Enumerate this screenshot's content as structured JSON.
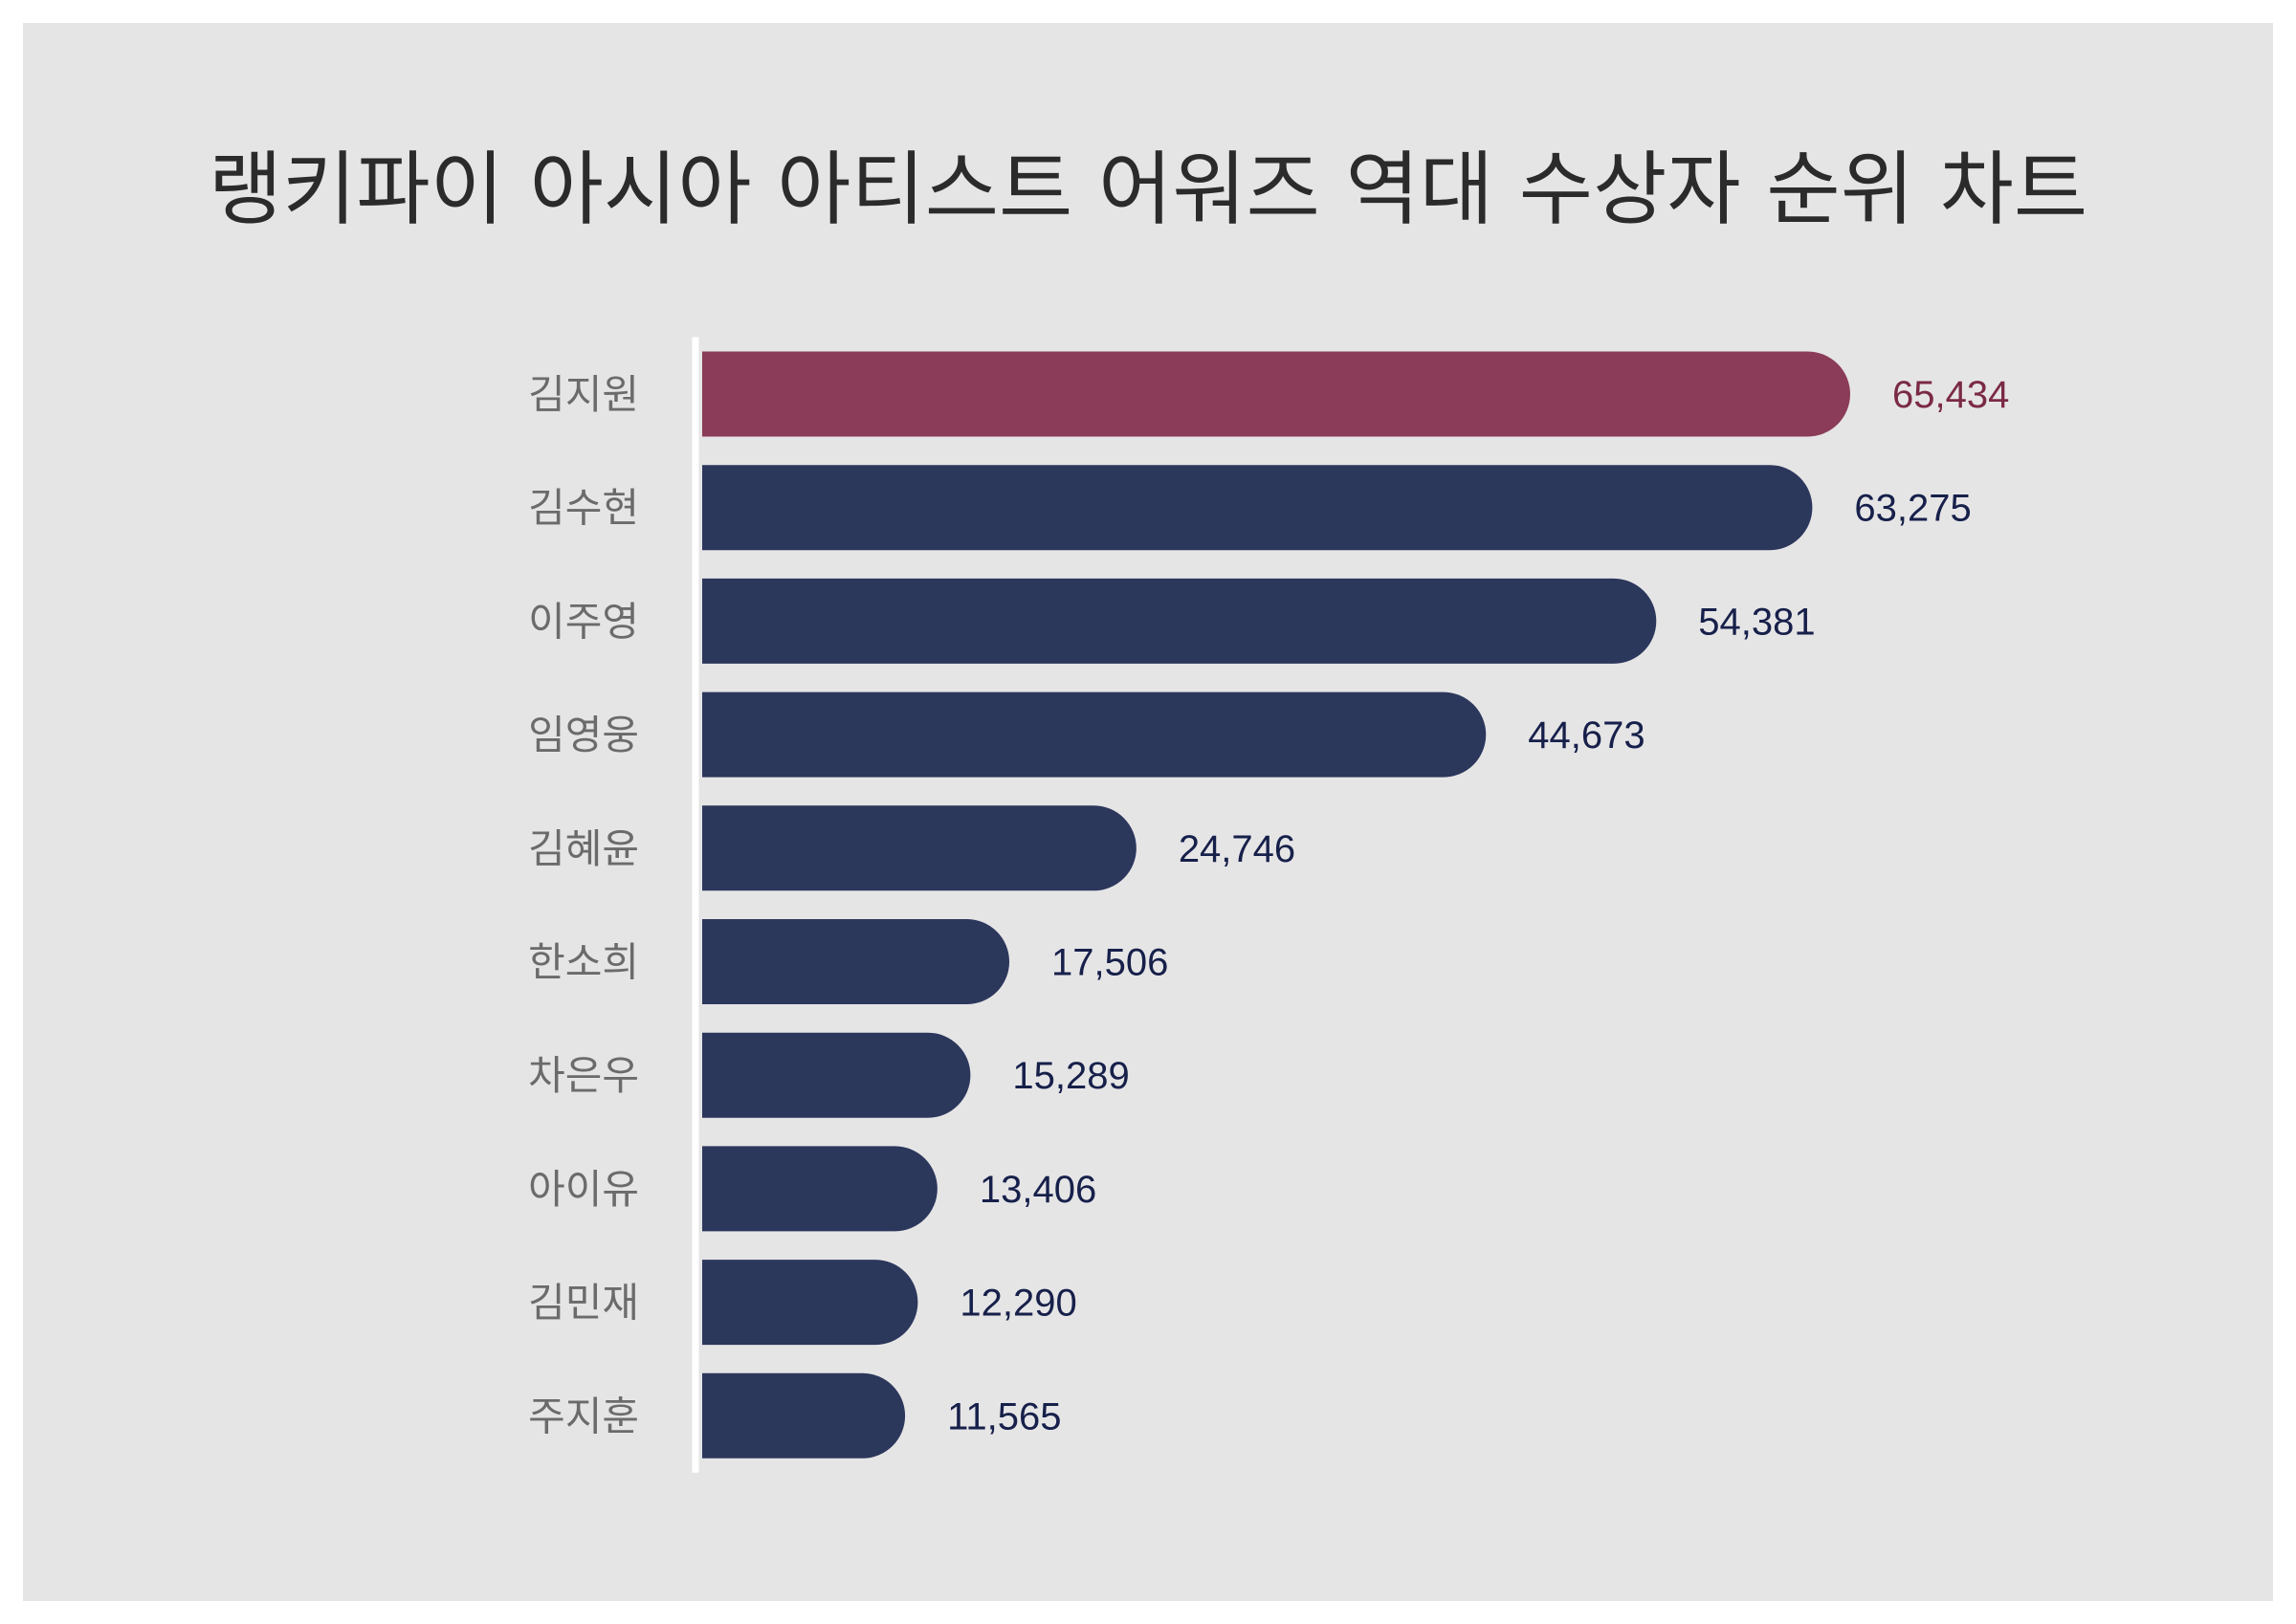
{
  "chart_data": {
    "type": "bar",
    "orientation": "horizontal",
    "title": "랭키파이 아시아 아티스트 어워즈 역대 수상자 순위 차트",
    "xlabel": "",
    "ylabel": "",
    "categories": [
      "김지원",
      "김수현",
      "이주영",
      "임영웅",
      "김혜윤",
      "한소희",
      "차은우",
      "아이유",
      "김민재",
      "주지훈"
    ],
    "values": [
      65434,
      63275,
      54381,
      44673,
      24746,
      17506,
      15289,
      13406,
      12290,
      11565
    ],
    "value_labels": [
      "65,434",
      "63,275",
      "54,381",
      "44,673",
      "24,746",
      "17,506",
      "15,289",
      "13,406",
      "12,290",
      "11,565"
    ],
    "highlight_index": 0,
    "xlim": [
      0,
      65434
    ],
    "grid": false,
    "legend": "none"
  },
  "colors": {
    "background": "#e6e5e6",
    "highlight_bar": "#8a3c58",
    "highlight_label": "#7a2a45",
    "bar": "#2c375c",
    "value_label": "#16204a",
    "category_label": "#6b6b6b",
    "axis_line": "#ffffff",
    "title": "#2b2b2b"
  }
}
